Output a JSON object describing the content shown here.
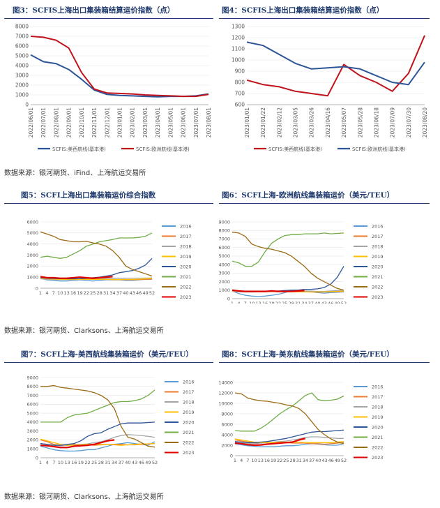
{
  "sources": [
    "数据来源：银河期货、iFind、上海航运交易所",
    "数据来源：银河期货、Clarksons、上海航运交易所",
    "数据来源：银河期货、Clarksons、上海航运交易所"
  ],
  "chart_data": [
    {
      "id": "fig3",
      "type": "line",
      "title": "图3：SCFIS上海出口集装箱结算运价指数（点）",
      "x": [
        "2022/06/01",
        "2022/07/01",
        "2022/08/01",
        "2022/09/01",
        "2022/10/01",
        "2022/11/01",
        "2022/12/01",
        "2023/01/01",
        "2023/02/01",
        "2023/03/01",
        "2023/04/01",
        "2023/05/01",
        "2023/06/01",
        "2023/07/01",
        "2023/08/01"
      ],
      "yticks": [
        "0",
        "1000",
        "2000",
        "3000",
        "4000",
        "5000",
        "6000",
        "7000",
        "8000"
      ],
      "ylim": [
        0,
        8000
      ],
      "legend_position": "bottom",
      "series": [
        {
          "name": "SCFIS:美西航线(基本港)",
          "color": "#2e5597",
          "values": [
            5100,
            4400,
            4200,
            3600,
            2600,
            1500,
            1050,
            950,
            900,
            850,
            800,
            850,
            850,
            900,
            1100
          ]
        },
        {
          "name": "SCFIS:欧洲航线(基本港)",
          "color": "#c0141c",
          "values": [
            7000,
            6900,
            6600,
            5800,
            3300,
            1600,
            1200,
            1150,
            1100,
            1000,
            950,
            900,
            850,
            850,
            1050
          ]
        }
      ]
    },
    {
      "id": "fig4",
      "type": "line",
      "title": "图4：SCFIS上海出口集装箱结算运价指数（点）",
      "x": [
        "2023/01/01",
        "2023/01/22",
        "2023/02/12",
        "2023/03/05",
        "2023/03/26",
        "2023/04/16",
        "2023/05/07",
        "2023/05/28",
        "2023/06/18",
        "2023/07/09",
        "2023/07/30",
        "2023/08/20"
      ],
      "yticks": [
        "600",
        "700",
        "800",
        "900",
        "1000",
        "1100",
        "1200",
        "1300"
      ],
      "ylim": [
        600,
        1300
      ],
      "legend_position": "bottom",
      "series": [
        {
          "name": "SCFIS:美西航线(基本港)",
          "color": "#c0141c",
          "values": [
            820,
            780,
            760,
            720,
            700,
            680,
            960,
            860,
            800,
            720,
            880,
            1220
          ]
        },
        {
          "name": "SCFIS:欧洲航线(基本港)",
          "color": "#2e5597",
          "values": [
            1160,
            1130,
            1050,
            970,
            920,
            930,
            940,
            920,
            860,
            800,
            780,
            980
          ]
        }
      ]
    },
    {
      "id": "fig5",
      "type": "line",
      "title": "图5：SCFI上海出口集装箱运价综合指数",
      "x": [
        "1",
        "4",
        "7",
        "10",
        "13",
        "16",
        "19",
        "22",
        "25",
        "28",
        "31",
        "34",
        "37",
        "40",
        "43",
        "46",
        "49",
        "52"
      ],
      "yticks": [
        "0",
        "1000",
        "2000",
        "3000",
        "4000",
        "5000",
        "6000"
      ],
      "ylim": [
        0,
        6000
      ],
      "legend_position": "right",
      "series": [
        {
          "name": "2016",
          "color": "#5b9bd5",
          "values": [
            900,
            750,
            700,
            650,
            650,
            700,
            750,
            700,
            650,
            700,
            750,
            750,
            750,
            700,
            700,
            750,
            800,
            800
          ]
        },
        {
          "name": "2017",
          "color": "#ed7d31",
          "values": [
            1000,
            900,
            850,
            800,
            850,
            850,
            850,
            850,
            800,
            800,
            800,
            780,
            780,
            760,
            760,
            780,
            800,
            820
          ]
        },
        {
          "name": "2018",
          "color": "#a5a5a5",
          "values": [
            850,
            800,
            780,
            780,
            780,
            800,
            820,
            830,
            850,
            850,
            880,
            900,
            880,
            850,
            850,
            880,
            900,
            920
          ]
        },
        {
          "name": "2019",
          "color": "#ffc000",
          "values": [
            900,
            850,
            820,
            800,
            790,
            790,
            790,
            800,
            800,
            800,
            790,
            790,
            780,
            790,
            800,
            820,
            850,
            900
          ]
        },
        {
          "name": "2020",
          "color": "#2e5597",
          "values": [
            950,
            900,
            880,
            860,
            850,
            850,
            860,
            900,
            950,
            1000,
            1100,
            1200,
            1400,
            1500,
            1600,
            1800,
            2100,
            2700
          ]
        },
        {
          "name": "2021",
          "color": "#70ad47",
          "values": [
            2800,
            2900,
            2800,
            2700,
            2800,
            3100,
            3400,
            3800,
            4000,
            4200,
            4300,
            4400,
            4550,
            4550,
            4550,
            4600,
            4700,
            5000
          ]
        },
        {
          "name": "2022",
          "color": "#9c6b15",
          "values": [
            5100,
            4900,
            4700,
            4400,
            4300,
            4200,
            4200,
            4250,
            4100,
            4000,
            3800,
            3400,
            2800,
            2000,
            1700,
            1500,
            1300,
            1100
          ]
        },
        {
          "name": "2023",
          "color": "#e00000",
          "values": [
            1050,
            950,
            950,
            900,
            900,
            950,
            1000,
            950,
            900,
            950,
            1000,
            1050,
            null,
            null,
            null,
            null,
            null,
            null
          ]
        }
      ]
    },
    {
      "id": "fig6",
      "type": "line",
      "title": "图6：SCFI上海-欧洲航线集装箱运价（美元/TEU）",
      "x": [
        "1",
        "4",
        "7",
        "10",
        "13",
        "16",
        "19",
        "22",
        "25",
        "28",
        "31",
        "34",
        "37",
        "40",
        "43",
        "46",
        "49",
        "52"
      ],
      "yticks": [
        "0",
        "1000",
        "2000",
        "3000",
        "4000",
        "5000",
        "6000",
        "7000",
        "8000",
        "9000"
      ],
      "ylim": [
        0,
        9000
      ],
      "legend_position": "right",
      "series": [
        {
          "name": "2016",
          "color": "#5b9bd5",
          "values": [
            900,
            600,
            400,
            300,
            250,
            300,
            400,
            500,
            700,
            900,
            1000,
            900,
            800,
            700,
            650,
            700,
            750,
            800
          ]
        },
        {
          "name": "2017",
          "color": "#ed7d31",
          "values": [
            1000,
            900,
            850,
            800,
            850,
            850,
            900,
            900,
            850,
            850,
            800,
            800,
            780,
            760,
            780,
            800,
            820,
            850
          ]
        },
        {
          "name": "2018",
          "color": "#a5a5a5",
          "values": [
            850,
            800,
            780,
            780,
            800,
            820,
            830,
            850,
            850,
            850,
            900,
            900,
            880,
            850,
            850,
            900,
            950,
            1000
          ]
        },
        {
          "name": "2019",
          "color": "#ffc000",
          "values": [
            900,
            880,
            860,
            840,
            820,
            820,
            820,
            820,
            800,
            800,
            790,
            790,
            780,
            790,
            800,
            820,
            850,
            900
          ]
        },
        {
          "name": "2020",
          "color": "#2e5597",
          "values": [
            950,
            900,
            880,
            860,
            850,
            850,
            860,
            900,
            950,
            1000,
            1000,
            1100,
            1100,
            1150,
            1300,
            1700,
            2500,
            3800
          ]
        },
        {
          "name": "2021",
          "color": "#70ad47",
          "values": [
            4400,
            4200,
            3800,
            3800,
            4300,
            5500,
            6500,
            7000,
            7400,
            7500,
            7500,
            7600,
            7600,
            7600,
            7700,
            7600,
            7650,
            7700
          ]
        },
        {
          "name": "2022",
          "color": "#9c6b15",
          "values": [
            7800,
            7700,
            7300,
            6400,
            6100,
            5900,
            5800,
            5600,
            5400,
            5000,
            4400,
            3800,
            3000,
            2400,
            2000,
            1600,
            1200,
            1000
          ]
        },
        {
          "name": "2023",
          "color": "#e00000",
          "values": [
            1000,
            900,
            850,
            850,
            850,
            850,
            900,
            850,
            850,
            850,
            900,
            950,
            null,
            null,
            null,
            null,
            null,
            null
          ]
        }
      ]
    },
    {
      "id": "fig7",
      "type": "line",
      "title": "图7：SCFI上海-美西航线集装箱运价（美元/FEU）",
      "x": [
        "1",
        "4",
        "7",
        "10",
        "13",
        "16",
        "19",
        "22",
        "25",
        "28",
        "31",
        "34",
        "37",
        "40",
        "43",
        "46",
        "49",
        "52"
      ],
      "yticks": [
        "0",
        "1000",
        "2000",
        "3000",
        "4000",
        "5000",
        "6000",
        "7000",
        "8000",
        "9000"
      ],
      "ylim": [
        0,
        9000
      ],
      "legend_position": "right",
      "series": [
        {
          "name": "2016",
          "color": "#5b9bd5",
          "values": [
            1300,
            1100,
            900,
            800,
            750,
            750,
            800,
            900,
            900,
            1100,
            1300,
            1500,
            1600,
            1700,
            1600,
            1500,
            1400,
            1800
          ]
        },
        {
          "name": "2017",
          "color": "#ed7d31",
          "values": [
            2000,
            1800,
            1500,
            1400,
            1450,
            1500,
            1500,
            1450,
            1400,
            1450,
            1500,
            1500,
            1500,
            1450,
            1450,
            1500,
            1550,
            1600
          ]
        },
        {
          "name": "2018",
          "color": "#a5a5a5",
          "values": [
            1600,
            1500,
            1400,
            1350,
            1400,
            1450,
            1500,
            1550,
            1700,
            1800,
            2000,
            2300,
            2500,
            2600,
            2550,
            2500,
            2400,
            2300
          ]
        },
        {
          "name": "2019",
          "color": "#ffc000",
          "values": [
            2100,
            1900,
            1700,
            1500,
            1400,
            1400,
            1450,
            1500,
            1500,
            1500,
            1500,
            1450,
            1400,
            1450,
            1500,
            1550,
            1550,
            1600
          ]
        },
        {
          "name": "2020",
          "color": "#2e5597",
          "values": [
            1600,
            1500,
            1400,
            1400,
            1500,
            1600,
            1900,
            2400,
            2700,
            2800,
            3200,
            3500,
            3800,
            3900,
            3900,
            3900,
            3950,
            4000
          ]
        },
        {
          "name": "2021",
          "color": "#70ad47",
          "values": [
            4000,
            4000,
            4000,
            4000,
            4500,
            4800,
            4900,
            5000,
            5300,
            5600,
            5900,
            6200,
            6300,
            6300,
            6400,
            6600,
            7000,
            7600
          ]
        },
        {
          "name": "2022",
          "color": "#9c6b15",
          "values": [
            8000,
            8000,
            8100,
            7900,
            7800,
            7700,
            7600,
            7500,
            7300,
            7000,
            6500,
            5500,
            3500,
            2300,
            2100,
            1700,
            1300,
            1200
          ]
        },
        {
          "name": "2023",
          "color": "#e00000",
          "values": [
            1400,
            1350,
            1250,
            1150,
            1150,
            1300,
            1350,
            1400,
            1500,
            1700,
            1900,
            2000,
            null,
            null,
            null,
            null,
            null,
            null
          ]
        }
      ]
    },
    {
      "id": "fig8",
      "type": "line",
      "title": "图8：SCFI上海-美东航线集装箱运价（美元/FEU）",
      "x": [
        "1",
        "4",
        "7",
        "10",
        "13",
        "16",
        "19",
        "22",
        "25",
        "28",
        "31",
        "34",
        "37",
        "40",
        "43",
        "46",
        "49",
        "52"
      ],
      "yticks": [
        "0",
        "2000",
        "4000",
        "6000",
        "8000",
        "10000",
        "12000",
        "14000"
      ],
      "ylim": [
        0,
        14000
      ],
      "legend_position": "right",
      "series": [
        {
          "name": "2016",
          "color": "#5b9bd5",
          "values": [
            2300,
            2100,
            1900,
            1800,
            1700,
            1700,
            1700,
            1800,
            1900,
            1900,
            2000,
            2200,
            2300,
            2200,
            2100,
            2000,
            2000,
            2300
          ]
        },
        {
          "name": "2017",
          "color": "#ed7d31",
          "values": [
            3000,
            2800,
            2600,
            2500,
            2500,
            2500,
            2500,
            2500,
            2500,
            2400,
            2400,
            2400,
            2300,
            2300,
            2200,
            2300,
            2400,
            2500
          ]
        },
        {
          "name": "2018",
          "color": "#a5a5a5",
          "values": [
            2500,
            2400,
            2300,
            2300,
            2400,
            2500,
            2600,
            2700,
            2800,
            3000,
            3200,
            3500,
            3600,
            3600,
            3500,
            3400,
            3300,
            3300
          ]
        },
        {
          "name": "2019",
          "color": "#ffc000",
          "values": [
            3200,
            3000,
            2800,
            2600,
            2500,
            2500,
            2500,
            2600,
            2600,
            2600,
            2600,
            2500,
            2500,
            2500,
            2500,
            2500,
            2600,
            2700
          ]
        },
        {
          "name": "2020",
          "color": "#2e5597",
          "values": [
            2700,
            2600,
            2500,
            2500,
            2600,
            2700,
            2900,
            3100,
            3300,
            3600,
            3900,
            4200,
            4500,
            4600,
            4600,
            4700,
            4800,
            4900
          ]
        },
        {
          "name": "2021",
          "color": "#70ad47",
          "values": [
            4800,
            4700,
            4700,
            4700,
            5200,
            6000,
            7000,
            8000,
            8800,
            9500,
            10500,
            11500,
            12000,
            10700,
            10500,
            10600,
            10800,
            11400
          ]
        },
        {
          "name": "2022",
          "color": "#9c6b15",
          "values": [
            12000,
            11800,
            11000,
            10700,
            10500,
            10400,
            10200,
            10000,
            9700,
            9500,
            9000,
            8000,
            6500,
            5000,
            4000,
            3200,
            2600,
            2300
          ]
        },
        {
          "name": "2023",
          "color": "#e00000",
          "values": [
            2400,
            2300,
            2100,
            2000,
            2050,
            2200,
            2300,
            2400,
            2500,
            2600,
            3000,
            3300,
            null,
            null,
            null,
            null,
            null,
            null
          ]
        }
      ]
    }
  ]
}
